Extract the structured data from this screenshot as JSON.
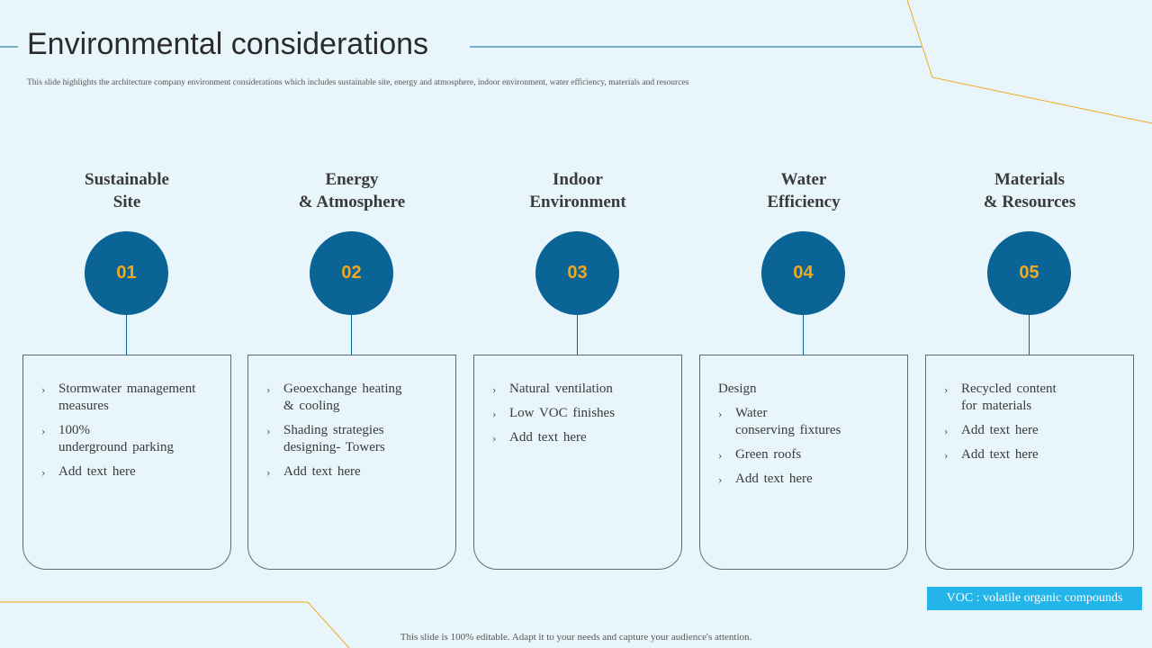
{
  "slide": {
    "title": "Environmental considerations",
    "subtitle": "This slide highlights the architecture company environment considerations which includes sustainable site, energy and atmosphere, indoor environment, water efficiency, materials and resources",
    "footer": "This slide is 100% editable. Adapt it to your needs and capture your audience's attention.",
    "voc_note": "VOC : volatile organic compounds"
  },
  "colors": {
    "background": "#e8f6fc",
    "circle": "#0a6596",
    "number": "#f2a81d",
    "accent_line": "#f2a81d",
    "voc_box": "#23b4ea"
  },
  "columns": [
    {
      "heading": [
        "Sustainable",
        "Site"
      ],
      "number": "01",
      "intro": "",
      "items": [
        [
          "Stormwater management",
          "measures"
        ],
        [
          "100%",
          "underground parking"
        ],
        [
          "Add text here"
        ]
      ]
    },
    {
      "heading": [
        "Energy",
        "& Atmosphere"
      ],
      "number": "02",
      "intro": "",
      "items": [
        [
          "Geoexchange heating",
          "& cooling"
        ],
        [
          "Shading strategies",
          "designing- Towers"
        ],
        [
          "Add text here"
        ]
      ]
    },
    {
      "heading": [
        "Indoor",
        "Environment"
      ],
      "number": "03",
      "intro": "",
      "items": [
        [
          "Natural ventilation"
        ],
        [
          "Low VOC finishes"
        ],
        [
          "Add text here"
        ]
      ]
    },
    {
      "heading": [
        "Water",
        "Efficiency"
      ],
      "number": "04",
      "intro": "Design",
      "items": [
        [
          "Water",
          "conserving fixtures"
        ],
        [
          "Green roofs"
        ],
        [
          "Add text here"
        ]
      ]
    },
    {
      "heading": [
        "Materials",
        "& Resources"
      ],
      "number": "05",
      "intro": "",
      "items": [
        [
          "Recycled content",
          "for materials"
        ],
        [
          "Add text here"
        ],
        [
          "Add text here"
        ]
      ]
    }
  ]
}
